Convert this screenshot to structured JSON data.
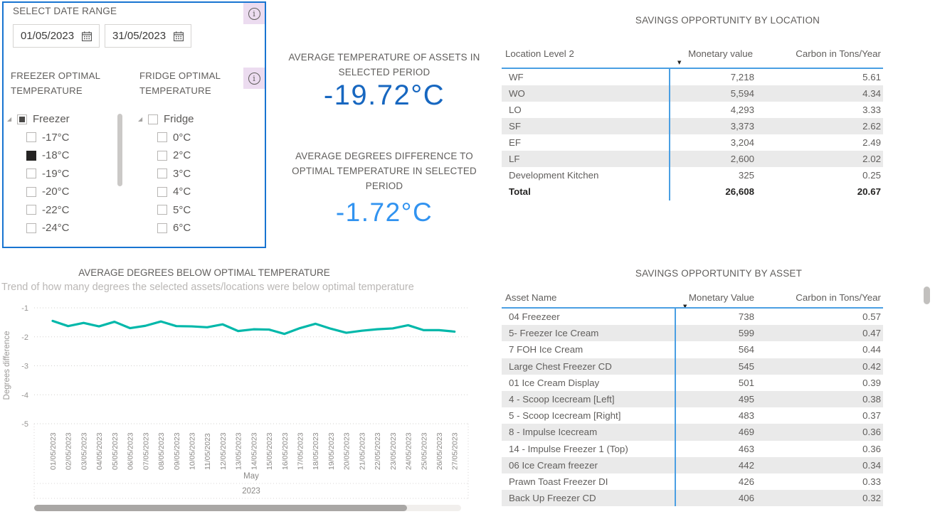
{
  "colors": {
    "panel_border": "#1874D1",
    "table_accent": "#4A9FE3",
    "kpi_temp_value": "#1767C0",
    "kpi_diff_value": "#3193F0",
    "trend_line": "#01B8AA",
    "checked_box": "#252423"
  },
  "slicer_panel": {
    "title": "SELECT DATE RANGE",
    "date_from": "01/05/2023",
    "date_to": "31/05/2023",
    "freezer": {
      "label": "FREEZER OPTIMAL TEMPERATURE",
      "parent": {
        "label": "Freezer",
        "state": "partial"
      },
      "items": [
        {
          "label": "-17°C",
          "checked": false
        },
        {
          "label": "-18°C",
          "checked": true
        },
        {
          "label": "-19°C",
          "checked": false
        },
        {
          "label": "-20°C",
          "checked": false
        },
        {
          "label": "-22°C",
          "checked": false
        },
        {
          "label": "-24°C",
          "checked": false
        }
      ]
    },
    "fridge": {
      "label": "FRIDGE OPTIMAL TEMPERATURE",
      "parent": {
        "label": "Fridge",
        "state": "unchecked"
      },
      "items": [
        {
          "label": "0°C",
          "checked": false
        },
        {
          "label": "2°C",
          "checked": false
        },
        {
          "label": "3°C",
          "checked": false
        },
        {
          "label": "4°C",
          "checked": false
        },
        {
          "label": "5°C",
          "checked": false
        },
        {
          "label": "6°C",
          "checked": false
        }
      ]
    }
  },
  "kpi_cards": [
    {
      "title": "AVERAGE TEMPERATURE OF ASSETS IN SELECTED PERIOD",
      "value": "-19.72°C"
    },
    {
      "title": "AVERAGE DEGREES DIFFERENCE TO OPTIMAL TEMPERATURE IN SELECTED PERIOD",
      "value": "-1.72°C"
    }
  ],
  "location_table": {
    "title": "SAVINGS OPPORTUNITY BY LOCATION",
    "columns": [
      "Location Level 2",
      "Monetary value",
      "Carbon in Tons/Year"
    ],
    "sorted_by": "Monetary value",
    "sort_direction": "descending",
    "rows": [
      [
        "WF",
        "7,218",
        "5.61"
      ],
      [
        "WO",
        "5,594",
        "4.34"
      ],
      [
        "LO",
        "4,293",
        "3.33"
      ],
      [
        "SF",
        "3,373",
        "2.62"
      ],
      [
        "EF",
        "3,204",
        "2.49"
      ],
      [
        "LF",
        "2,600",
        "2.02"
      ],
      [
        "Development Kitchen",
        "325",
        "0.25"
      ]
    ],
    "total_row": [
      "Total",
      "26,608",
      "20.67"
    ]
  },
  "asset_table": {
    "title": "SAVINGS OPPORTUNITY BY ASSET",
    "columns": [
      "Asset Name",
      "Monetary Value",
      "Carbon in Tons/Year"
    ],
    "sorted_by": "Monetary Value",
    "sort_direction": "descending",
    "rows": [
      [
        "04 Freezeer",
        "738",
        "0.57"
      ],
      [
        "5- Freezer Ice Cream",
        "599",
        "0.47"
      ],
      [
        "7 FOH Ice Cream",
        "564",
        "0.44"
      ],
      [
        "Large Chest Freezer CD",
        "545",
        "0.42"
      ],
      [
        "01 Ice Cream Display",
        "501",
        "0.39"
      ],
      [
        "4 - Scoop Icecream [Left]",
        "495",
        "0.38"
      ],
      [
        "5 - Scoop Icecream [Right]",
        "483",
        "0.37"
      ],
      [
        "8 - Impulse Icecream",
        "469",
        "0.36"
      ],
      [
        "14 - Impulse Freezer 1 (Top)",
        "463",
        "0.36"
      ],
      [
        "06 Ice Cream freezer",
        "442",
        "0.34"
      ],
      [
        "Prawn Toast Freezer DI",
        "426",
        "0.33"
      ],
      [
        "Back Up Freezer CD",
        "406",
        "0.32"
      ]
    ]
  },
  "chart_data": {
    "type": "line",
    "title": "AVERAGE DEGREES BELOW OPTIMAL TEMPERATURE",
    "subtitle": "Trend of how many degrees the selected assets/locations were below optimal temperature",
    "ylabel": "Degrees difference",
    "xlabel": "May 2023",
    "month_label": "May",
    "year_label": "2023",
    "ylim": [
      -5,
      -1
    ],
    "yticks": [
      -1,
      -2,
      -3,
      -4,
      -5
    ],
    "grid": "dotted-horizontal",
    "legend": "none",
    "x": [
      "01/05/2023",
      "02/05/2023",
      "03/05/2023",
      "04/05/2023",
      "05/05/2023",
      "06/05/2023",
      "07/05/2023",
      "08/05/2023",
      "09/05/2023",
      "10/05/2023",
      "11/05/2023",
      "12/05/2023",
      "13/05/2023",
      "14/05/2023",
      "15/05/2023",
      "16/05/2023",
      "17/05/2023",
      "18/05/2023",
      "19/05/2023",
      "20/05/2023",
      "21/05/2023",
      "22/05/2023",
      "23/05/2023",
      "24/05/2023",
      "25/05/2023",
      "26/05/2023",
      "27/05/2023"
    ],
    "values": [
      -1.45,
      -1.63,
      -1.52,
      -1.64,
      -1.48,
      -1.7,
      -1.62,
      -1.47,
      -1.63,
      -1.64,
      -1.67,
      -1.57,
      -1.8,
      -1.74,
      -1.75,
      -1.9,
      -1.7,
      -1.55,
      -1.72,
      -1.86,
      -1.79,
      -1.74,
      -1.71,
      -1.6,
      -1.77,
      -1.77,
      -1.82
    ]
  }
}
